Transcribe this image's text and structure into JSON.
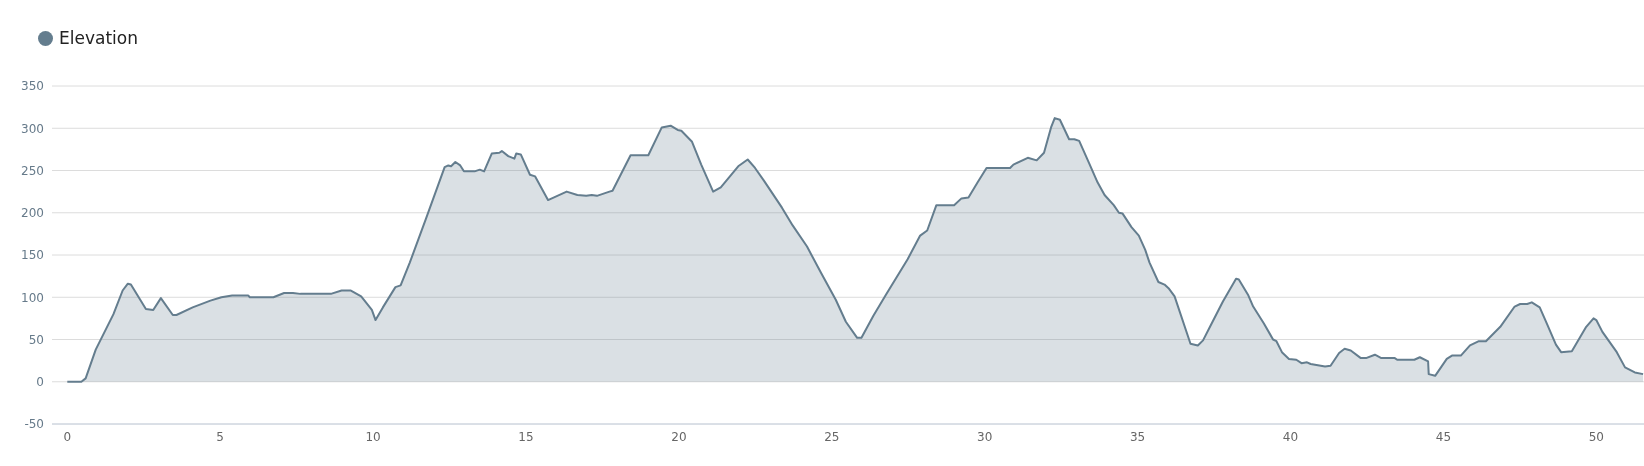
{
  "chart_data": {
    "type": "area",
    "legend": "top left",
    "grid": "y",
    "xlim": [
      -0.5,
      51.56
    ],
    "xticks": [
      0,
      5,
      10,
      15,
      20,
      25,
      30,
      35,
      40,
      45,
      50
    ],
    "ylim": [
      -50,
      350
    ],
    "yticks": [
      -50,
      0,
      50,
      100,
      150,
      200,
      250,
      300,
      350
    ],
    "x": [
      0,
      0.46,
      0.6,
      0.93,
      1.51,
      1.81,
      1.98,
      2.08,
      2.57,
      2.81,
      3.06,
      3.45,
      3.57,
      4.1,
      4.68,
      5.04,
      5.39,
      5.92,
      5.97,
      6.74,
      7.09,
      7.38,
      7.62,
      8.62,
      8.97,
      9.26,
      9.61,
      9.96,
      10.08,
      10.32,
      10.73,
      10.9,
      11.2,
      11.73,
      12.34,
      12.46,
      12.55,
      12.69,
      12.85,
      12.97,
      13.32,
      13.49,
      13.63,
      13.88,
      14.13,
      14.21,
      14.42,
      14.62,
      14.68,
      14.83,
      15.13,
      15.3,
      15.72,
      16.33,
      16.68,
      16.97,
      17.15,
      17.32,
      17.73,
      17.83,
      18.42,
      19,
      19.44,
      19.73,
      19.96,
      20.08,
      20.43,
      20.73,
      21.12,
      21.37,
      21.94,
      22.25,
      22.49,
      22.78,
      23.37,
      23.72,
      24.19,
      24.66,
      25.13,
      25.46,
      25.83,
      25.97,
      26.36,
      26.77,
      27.48,
      27.89,
      28.12,
      28.42,
      29,
      29.24,
      29.47,
      29.77,
      30.06,
      30.83,
      30.94,
      31.41,
      31.7,
      31.94,
      32.17,
      32.29,
      32.46,
      32.76,
      32.93,
      33.09,
      33.41,
      33.69,
      33.92,
      34.22,
      34.39,
      34.51,
      34.8,
      35.04,
      35.25,
      35.39,
      35.68,
      35.88,
      36.03,
      36.21,
      36.73,
      36.97,
      37.14,
      37.38,
      37.79,
      38.22,
      38.31,
      38.61,
      38.78,
      39.13,
      39.43,
      39.54,
      39.72,
      39.95,
      40.19,
      40.36,
      40.54,
      40.66,
      41.13,
      41.31,
      41.59,
      41.77,
      41.97,
      42.3,
      42.47,
      42.76,
      42.97,
      43.41,
      43.49,
      44.05,
      44.23,
      44.5,
      44.52,
      44.73,
      45.11,
      45.28,
      45.57,
      45.87,
      46.16,
      46.39,
      46.86,
      47.33,
      47.51,
      47.74,
      47.89,
      48.15,
      48.38,
      48.68,
      48.85,
      49.2,
      49.67,
      49.91,
      50,
      50.2,
      50.67,
      50.94,
      51.26,
      51.53
    ],
    "series": [
      {
        "name": "Elevation",
        "color": "#647d8e",
        "values": [
          0,
          0,
          4,
          38,
          80,
          108,
          116,
          115,
          86,
          85,
          99,
          79,
          79,
          88,
          96,
          100,
          102,
          102,
          100,
          100,
          105,
          105,
          104,
          104,
          108,
          108,
          101,
          85,
          73,
          88,
          112,
          114,
          141,
          193,
          254,
          256,
          255,
          260,
          256,
          249,
          249,
          251,
          249,
          270,
          271,
          273,
          267,
          264,
          270,
          269,
          245,
          243,
          215,
          225,
          221,
          220,
          221,
          220,
          225,
          226,
          268,
          268,
          301,
          303,
          298,
          297,
          284,
          257,
          225,
          230,
          255,
          263,
          253,
          238,
          206,
          185,
          160,
          128,
          97,
          71,
          52,
          52,
          78,
          103,
          145,
          173,
          179,
          209,
          209,
          217,
          218,
          236,
          253,
          253,
          257,
          265,
          262,
          271,
          301,
          312,
          310,
          287,
          287,
          285,
          259,
          236,
          221,
          209,
          200,
          199,
          183,
          173,
          156,
          141,
          118,
          115,
          110,
          101,
          45,
          43,
          49,
          66,
          95,
          122,
          121,
          103,
          89,
          69,
          50,
          48,
          35,
          27,
          26,
          22,
          23,
          21,
          18,
          19,
          34,
          39,
          37,
          28,
          28,
          32,
          28,
          28,
          26,
          26,
          29,
          24,
          9,
          7,
          27,
          31,
          31,
          43,
          48,
          48,
          65,
          89,
          92,
          92,
          94,
          88,
          69,
          44,
          35,
          36,
          65,
          75,
          73,
          59,
          35,
          17,
          11,
          9
        ]
      }
    ]
  }
}
